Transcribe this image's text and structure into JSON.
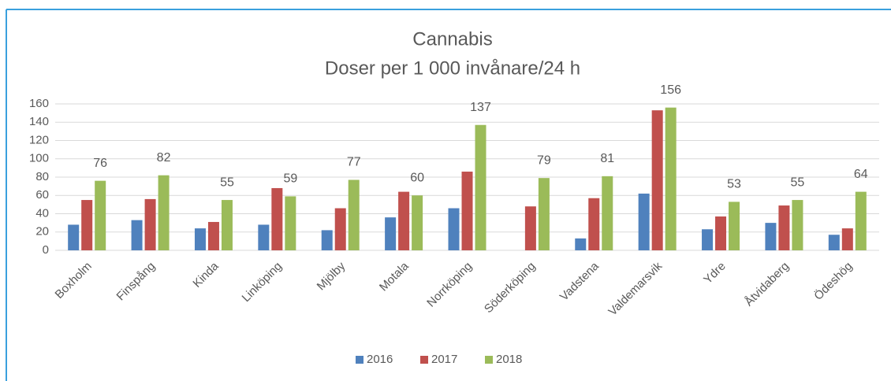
{
  "chart_data": {
    "type": "bar",
    "title": "Cannabis",
    "subtitle": "Doser per 1 000 invånare/24 h",
    "categories": [
      "Boxholm",
      "Finspång",
      "Kinda",
      "Linköping",
      "Mjölby",
      "Motala",
      "Norrköping",
      "Söderköping",
      "Vadstena",
      "Valdemarsvik",
      "Ydre",
      "Åtvidaberg",
      "Ödeshög"
    ],
    "series": [
      {
        "name": "2016",
        "color": "#4f81bd",
        "show_labels": false,
        "values": [
          28,
          33,
          24,
          28,
          22,
          36,
          46,
          null,
          13,
          62,
          23,
          30,
          17
        ]
      },
      {
        "name": "2017",
        "color": "#c0504d",
        "show_labels": false,
        "values": [
          55,
          56,
          31,
          68,
          46,
          64,
          86,
          48,
          57,
          153,
          37,
          49,
          24
        ]
      },
      {
        "name": "2018",
        "color": "#9bbb59",
        "show_labels": true,
        "values": [
          76,
          82,
          55,
          59,
          77,
          60,
          137,
          79,
          81,
          156,
          53,
          55,
          64
        ]
      }
    ],
    "ylim": [
      0,
      160
    ],
    "yticks": [
      0,
      20,
      40,
      60,
      80,
      100,
      120,
      140,
      160
    ],
    "grid": true,
    "legend": "bottom"
  }
}
